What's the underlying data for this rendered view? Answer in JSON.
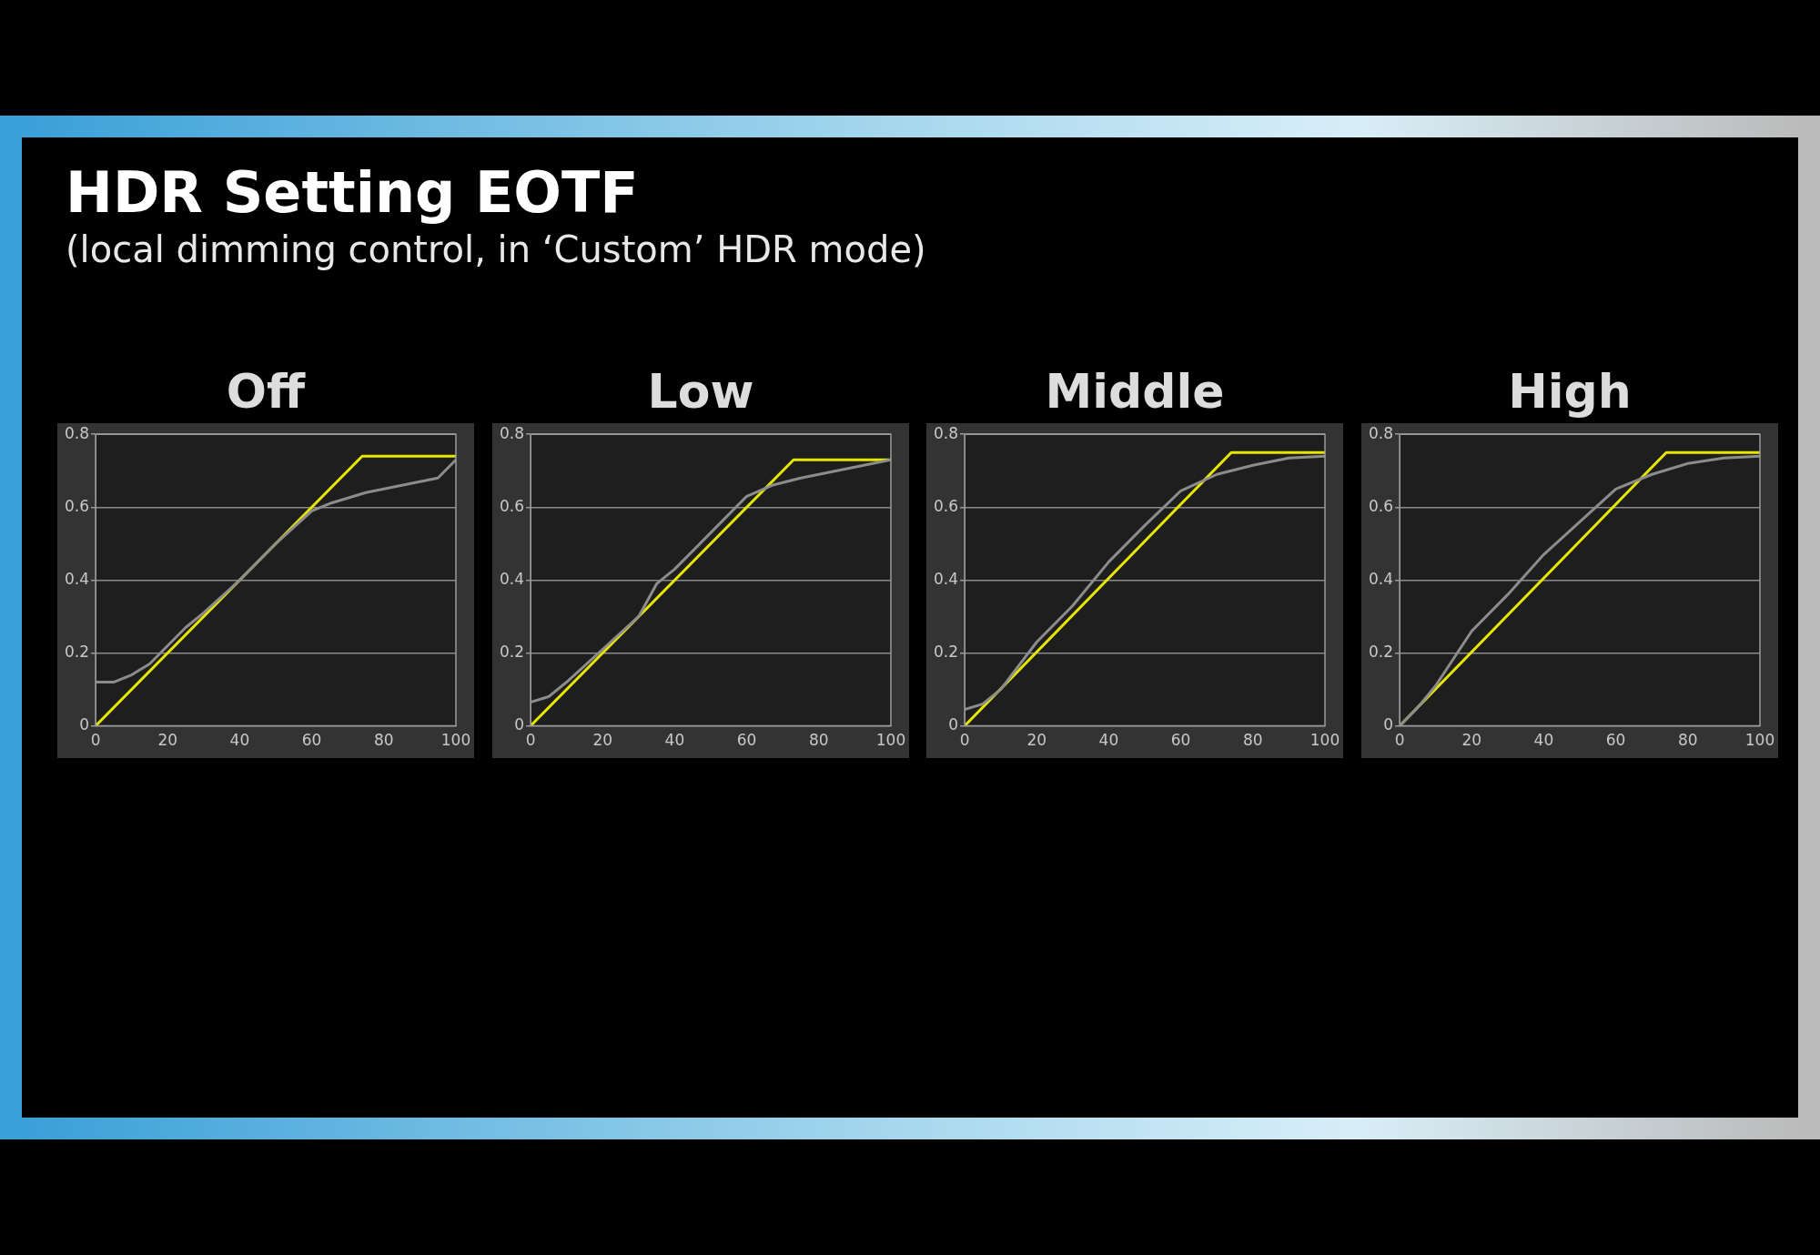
{
  "chart_data": [
    {
      "type": "other",
      "title": "HDR Setting EOTF",
      "subtitle": "(local dimming control, in ‘Custom’ HDR mode)"
    },
    {
      "type": "line",
      "title": "Off",
      "xlim": [
        0,
        100
      ],
      "xticks": [
        0,
        20,
        40,
        60,
        80,
        100
      ],
      "ylim": [
        0,
        0.8
      ],
      "yticks": [
        0,
        0.2,
        0.4,
        0.6,
        0.8
      ],
      "grid": "y",
      "series": [
        {
          "color": "#8c8c8c",
          "x": [
            0,
            5,
            10,
            15,
            20,
            25,
            30,
            40,
            50,
            60,
            65,
            75,
            85,
            95,
            100
          ],
          "values": [
            0.12,
            0.12,
            0.14,
            0.17,
            0.22,
            0.27,
            0.31,
            0.4,
            0.5,
            0.59,
            0.61,
            0.64,
            0.66,
            0.68,
            0.73
          ]
        },
        {
          "color": "#e6e600",
          "x": [
            0,
            74,
            100
          ],
          "values": [
            0,
            0.74,
            0.74
          ]
        }
      ]
    },
    {
      "type": "line",
      "title": "Low",
      "xlim": [
        0,
        100
      ],
      "xticks": [
        0,
        20,
        40,
        60,
        80,
        100
      ],
      "ylim": [
        0,
        0.8
      ],
      "yticks": [
        0,
        0.2,
        0.4,
        0.6,
        0.8
      ],
      "grid": "y",
      "series": [
        {
          "color": "#8c8c8c",
          "x": [
            0,
            5,
            10,
            20,
            30,
            35,
            40,
            50,
            60,
            67,
            75,
            85,
            100
          ],
          "values": [
            0.065,
            0.08,
            0.12,
            0.21,
            0.3,
            0.39,
            0.43,
            0.53,
            0.63,
            0.66,
            0.68,
            0.7,
            0.73
          ]
        },
        {
          "color": "#e6e600",
          "x": [
            0,
            73,
            100
          ],
          "values": [
            0,
            0.73,
            0.73
          ]
        }
      ]
    },
    {
      "type": "line",
      "title": "Middle",
      "xlim": [
        0,
        100
      ],
      "xticks": [
        0,
        20,
        40,
        60,
        80,
        100
      ],
      "ylim": [
        0,
        0.8
      ],
      "yticks": [
        0,
        0.2,
        0.4,
        0.6,
        0.8
      ],
      "grid": "y",
      "series": [
        {
          "color": "#8c8c8c",
          "x": [
            0,
            5,
            10,
            20,
            30,
            40,
            50,
            60,
            70,
            80,
            90,
            100
          ],
          "values": [
            0.045,
            0.06,
            0.1,
            0.23,
            0.33,
            0.45,
            0.55,
            0.645,
            0.69,
            0.715,
            0.735,
            0.74
          ]
        },
        {
          "color": "#e6e600",
          "x": [
            0,
            74,
            100
          ],
          "values": [
            0,
            0.75,
            0.75
          ]
        }
      ]
    },
    {
      "type": "line",
      "title": "High",
      "xlim": [
        0,
        100
      ],
      "xticks": [
        0,
        20,
        40,
        60,
        80,
        100
      ],
      "ylim": [
        0,
        0.8
      ],
      "yticks": [
        0,
        0.2,
        0.4,
        0.6,
        0.8
      ],
      "grid": "y",
      "series": [
        {
          "color": "#8c8c8c",
          "x": [
            0,
            5,
            10,
            20,
            30,
            40,
            50,
            60,
            70,
            80,
            90,
            100
          ],
          "values": [
            0,
            0.05,
            0.11,
            0.26,
            0.36,
            0.47,
            0.56,
            0.65,
            0.69,
            0.72,
            0.735,
            0.74
          ]
        },
        {
          "color": "#e6e600",
          "x": [
            0,
            74,
            100
          ],
          "values": [
            0,
            0.75,
            0.75
          ]
        }
      ]
    }
  ]
}
